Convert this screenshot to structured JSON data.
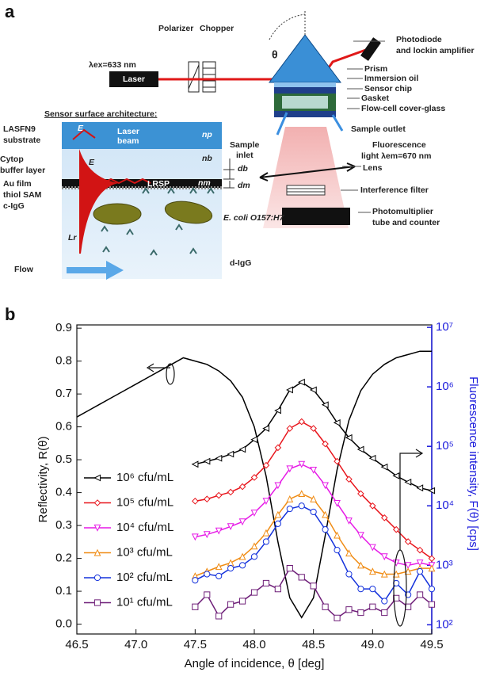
{
  "panels": [
    "a",
    "b"
  ],
  "figure_a": {
    "polarizer": "Polarizer",
    "chopper": "Chopper",
    "wavelength_ex": "λex=633 nm",
    "laser": "Laser",
    "theta": "θ",
    "photodiode": "Photodiode",
    "lockin": "and lockin amplifier",
    "prism": "Prism",
    "immersion_oil": "Immersion oil",
    "sensor_chip": "Sensor chip",
    "gasket": "Gasket",
    "cover_glass": "Flow-cell cover-glass",
    "sample_outlet": "Sample outlet",
    "sample": "Sample",
    "inlet": "inlet",
    "fluorescence": "Fluorescence",
    "wavelength_em": "light λem=670 nm",
    "lens": "Lens",
    "filter": "Interference filter",
    "pmt": "Photomultiplier",
    "counter": "tube and counter",
    "architecture": "Sensor surface architecture:",
    "lasfn9": "LASFN9",
    "substrate": "substrate",
    "cytop": "Cytop",
    "buffer": "buffer layer",
    "au_film": "Au film",
    "thiol": "thiol SAM",
    "c_igg": "c-IgG",
    "ecoli": "E. coli O157:H7",
    "d_igg": "d-IgG",
    "flow": "Flow",
    "laser_beam_1": "Laser",
    "laser_beam_2": "beam",
    "lrsp": "LRSP",
    "n_p": "np",
    "n_b": "nb",
    "n_m": "nm",
    "d_b": "db",
    "d_m": "dm",
    "e_field_1": "E",
    "e_field_2": "E",
    "l_r": "Lr"
  },
  "chart_data": {
    "type": "line",
    "xlabel": "Angle of incidence, θ [deg]",
    "ylabel": "Reflectivity, R(θ)",
    "y2label": "Fluorescence intensity, F(θ) [cps]",
    "y2color": "#1a1adc",
    "xlim": [
      46.5,
      49.5
    ],
    "xticks": [
      46.5,
      {
        "value": 47,
        "label": "47.0"
      },
      47.5,
      {
        "value": 48,
        "label": "48.0"
      },
      48.5,
      {
        "value": 49,
        "label": "49.0"
      },
      49.5
    ],
    "ylim": [
      -0.03,
      0.91
    ],
    "yticks": [
      {
        "value": 0,
        "label": "0.0"
      },
      0.1,
      0.2,
      0.3,
      0.4,
      0.5,
      0.6,
      0.7,
      0.8,
      0.9
    ],
    "y2lim": [
      70,
      11000000
    ],
    "y2log": true,
    "y2ticks": [
      {
        "value": 100,
        "label": "10²"
      },
      {
        "value": 1000,
        "label": "10³"
      },
      {
        "value": 10000,
        "label": "10⁴"
      },
      {
        "value": 100000,
        "label": "10⁵"
      },
      {
        "value": 1000000,
        "label": "10⁶"
      },
      {
        "value": 10000000,
        "label": "10⁷"
      }
    ],
    "series": [
      {
        "color": "#000000",
        "marker": "none",
        "x": [
          46.5,
          46.6,
          46.7,
          46.8,
          46.9,
          47.0,
          47.1,
          47.2,
          47.3,
          47.4,
          47.5,
          47.6,
          47.7,
          47.8,
          47.9,
          48.0,
          48.1,
          48.2,
          48.3,
          48.4,
          48.5,
          48.6,
          48.7,
          48.8,
          48.9,
          49.0,
          49.1,
          49.2,
          49.3,
          49.4,
          49.5
        ],
        "values": [
          0.63,
          0.65,
          0.67,
          0.69,
          0.71,
          0.73,
          0.75,
          0.77,
          0.79,
          0.81,
          0.8,
          0.79,
          0.77,
          0.74,
          0.69,
          0.6,
          0.45,
          0.25,
          0.08,
          0.02,
          0.08,
          0.27,
          0.47,
          0.62,
          0.71,
          0.76,
          0.79,
          0.81,
          0.82,
          0.83,
          0.83
        ]
      },
      {
        "name": "10⁶ cfu/mL",
        "color": "#000000",
        "marker": "triangle-left",
        "axis": "y2",
        "x": [
          47.5,
          47.6,
          47.7,
          47.8,
          47.9,
          48.0,
          48.1,
          48.2,
          48.3,
          48.4,
          48.5,
          48.6,
          48.7,
          48.8,
          48.9,
          49.0,
          49.1,
          49.2,
          49.3,
          49.4,
          49.5
        ],
        "values": [
          50000,
          56000,
          63000,
          74000,
          89000,
          130000,
          200000,
          400000,
          890000,
          1200000,
          890000,
          500000,
          250000,
          140000,
          89000,
          63000,
          45000,
          32000,
          25000,
          20000,
          18000
        ]
      },
      {
        "name": "10⁵ cfu/mL",
        "color": "#e8141b",
        "marker": "diamond",
        "axis": "y2",
        "x": [
          47.5,
          47.6,
          47.7,
          47.8,
          47.9,
          48.0,
          48.1,
          48.2,
          48.3,
          48.4,
          48.5,
          48.6,
          48.7,
          48.8,
          48.9,
          49.0,
          49.1,
          49.2,
          49.3,
          49.4,
          49.5
        ],
        "values": [
          12000,
          13000,
          15000,
          17000,
          21000,
          30000,
          48000,
          95000,
          200000,
          260000,
          200000,
          110000,
          56000,
          28000,
          16000,
          10000,
          6300,
          4000,
          2500,
          1800,
          1300
        ]
      },
      {
        "name": "10⁴ cfu/mL",
        "color": "#e619e6",
        "marker": "triangle-down",
        "axis": "y2",
        "x": [
          47.5,
          47.6,
          47.7,
          47.8,
          47.9,
          48.0,
          48.1,
          48.2,
          48.3,
          48.4,
          48.5,
          48.6,
          48.7,
          48.8,
          48.9,
          49.0,
          49.1,
          49.2,
          49.3,
          49.4,
          49.5
        ],
        "values": [
          3000,
          3300,
          3800,
          4500,
          5400,
          7600,
          12000,
          22000,
          42000,
          50000,
          40000,
          22000,
          11000,
          5600,
          3200,
          2000,
          1400,
          1100,
          1000,
          1100,
          1000
        ]
      },
      {
        "name": "10³ cfu/mL",
        "color": "#f08c14",
        "marker": "triangle-up",
        "axis": "y2",
        "x": [
          47.5,
          47.6,
          47.7,
          47.8,
          47.9,
          48.0,
          48.1,
          48.2,
          48.3,
          48.4,
          48.5,
          48.6,
          48.7,
          48.8,
          48.9,
          49.0,
          49.1,
          49.2,
          49.3,
          49.4,
          49.5
        ],
        "values": [
          660,
          790,
          950,
          1100,
          1400,
          2100,
          3500,
          7100,
          13000,
          16000,
          13000,
          7100,
          3200,
          1600,
          1000,
          790,
          710,
          710,
          790,
          890,
          890
        ]
      },
      {
        "name": "10² cfu/mL",
        "color": "#1432dc",
        "marker": "circle",
        "axis": "y2",
        "x": [
          47.5,
          47.6,
          47.7,
          47.8,
          47.9,
          48.0,
          48.1,
          48.2,
          48.3,
          48.4,
          48.5,
          48.6,
          48.7,
          48.8,
          48.9,
          49.0,
          49.1,
          49.2,
          49.3,
          49.4,
          49.5
        ],
        "values": [
          560,
          710,
          660,
          890,
          1000,
          1400,
          2500,
          5000,
          8900,
          10000,
          7900,
          4000,
          1800,
          710,
          400,
          400,
          250,
          500,
          320,
          790,
          400
        ]
      },
      {
        "name": "10¹ cfu/mL",
        "color": "#6e1e78",
        "marker": "square",
        "axis": "y2",
        "x": [
          47.5,
          47.6,
          47.7,
          47.8,
          47.9,
          48.0,
          48.1,
          48.2,
          48.3,
          48.4,
          48.5,
          48.6,
          48.7,
          48.8,
          48.9,
          49.0,
          49.1,
          49.2,
          49.3,
          49.4,
          49.5
        ],
        "values": [
          200,
          320,
          140,
          220,
          250,
          350,
          500,
          400,
          890,
          630,
          450,
          200,
          130,
          180,
          160,
          200,
          160,
          280,
          200,
          320,
          220
        ]
      }
    ]
  }
}
